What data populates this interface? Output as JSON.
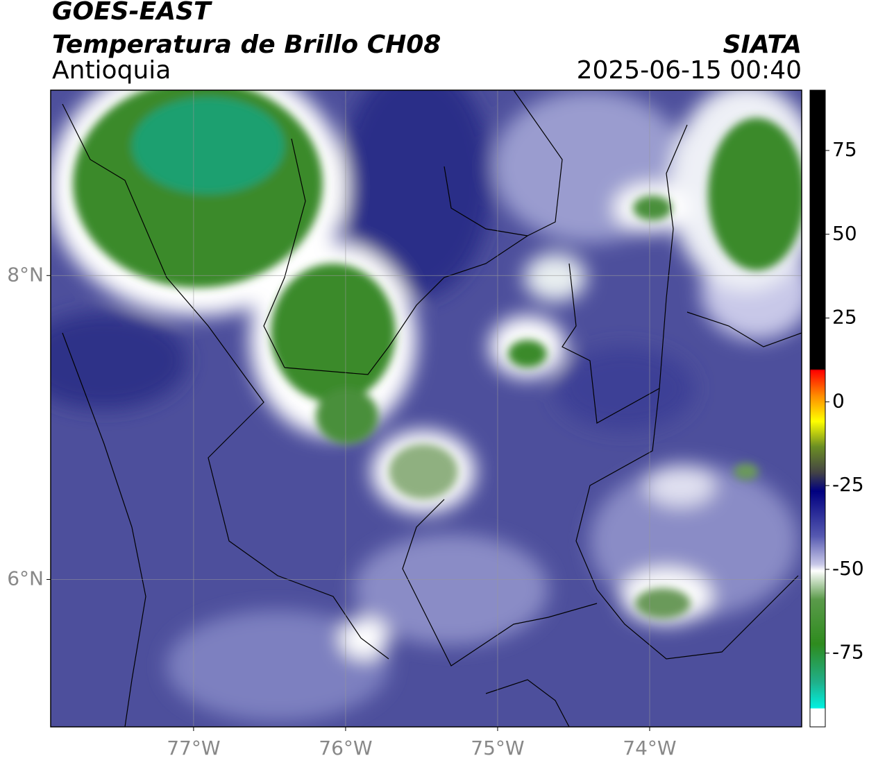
{
  "header": {
    "title": "GOES-EAST",
    "subtitle": "Temperatura de Brillo CH08",
    "region": "Antioquia",
    "source": "SIATA",
    "datetime": "2025-06-15 00:40"
  },
  "map": {
    "xlim": [
      -77.94,
      -73.0
    ],
    "ylim": [
      5.03,
      9.22
    ],
    "xticks": [
      {
        "value": -77,
        "label": "77°W"
      },
      {
        "value": -76,
        "label": "76°W"
      },
      {
        "value": -75,
        "label": "75°W"
      },
      {
        "value": -74,
        "label": "74°W"
      }
    ],
    "yticks": [
      {
        "value": 6,
        "label": "6°N"
      },
      {
        "value": 8,
        "label": "8°N"
      }
    ],
    "grid": true
  },
  "colorbar": {
    "lim": [
      -97,
      93
    ],
    "ticks": [
      75,
      50,
      25,
      0,
      -25,
      -50,
      -75
    ]
  }
}
